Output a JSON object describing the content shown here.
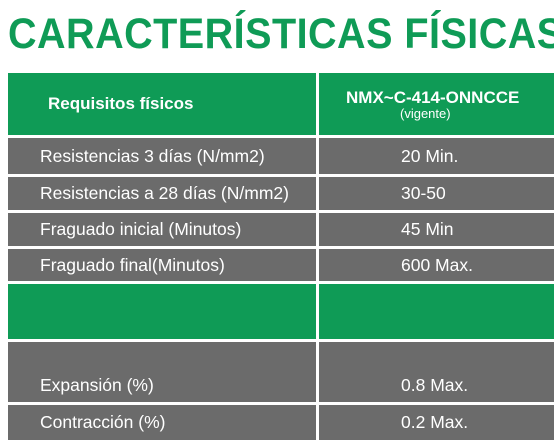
{
  "title": "CARACTERÍSTICAS FÍSICAS",
  "colors": {
    "accent_green": "#0f9b56",
    "row_gray": "#6b6b6b",
    "text_white": "#ffffff"
  },
  "table": {
    "header": {
      "col1": "Requisitos físicos",
      "col2_standard": "NMX~C-414-ONNCCE",
      "col2_note": "(vigente)"
    },
    "rows": [
      {
        "requirement": "Resistencias 3 días (N/mm2)",
        "value": "20 Min."
      },
      {
        "requirement": "Resistencias a 28 días (N/mm2)",
        "value": "30-50"
      },
      {
        "requirement": "Fraguado inicial (Minutos)",
        "value": "45 Min"
      },
      {
        "requirement": "Fraguado final(Minutos)",
        "value": "600 Max."
      },
      {
        "requirement": "",
        "value": ""
      },
      {
        "requirement": "Expansión (%)",
        "value": "0.8 Max."
      },
      {
        "requirement": "Contracción (%)",
        "value": "0.2 Max."
      }
    ]
  }
}
